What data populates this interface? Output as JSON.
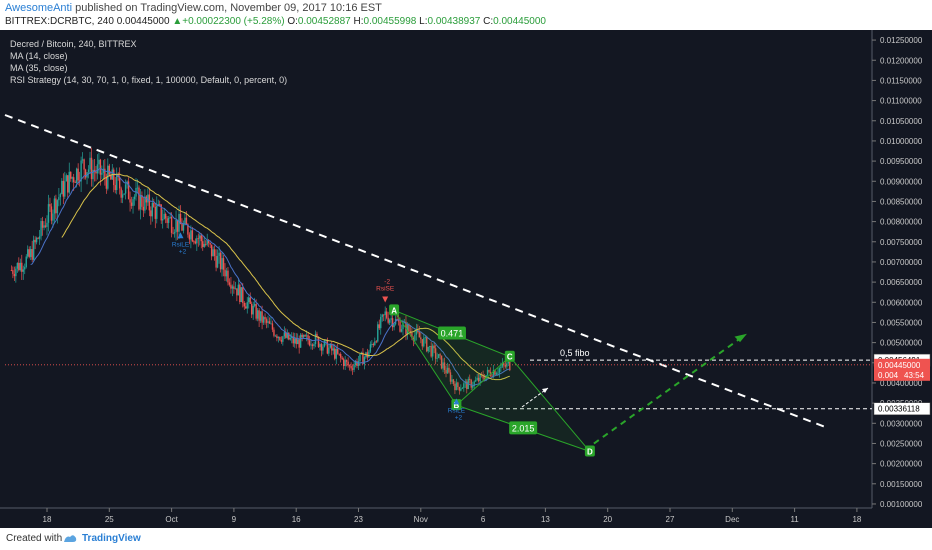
{
  "header": {
    "username": "AwesomeAnti",
    "published": "published on TradingView.com, November 09, 2017 10:16 EST",
    "symbol": "BITTREX:DCRBTC, 240",
    "last": "0.00445000",
    "change_arrow": "▲",
    "change": "+0.00022300 (+5.28%)",
    "o_label": "O:",
    "o": "0.00452887",
    "h_label": "H:",
    "h": "0.00455998",
    "l_label": "L:",
    "l": "0.00438937",
    "c_label": "C:",
    "c": "0.00445000"
  },
  "legend": {
    "title": "Decred / Bitcoin, 240, BITTREX",
    "ma14": "MA (14, close)",
    "ma35": "MA (35, close)",
    "rsi": "RSI Strategy (14, 30, 70, 1, 0, fixed, 1, 100000, Default, 0, percent, 0)"
  },
  "footer": {
    "created_with": "Created with",
    "brand": "TradingView"
  },
  "colors": {
    "background": "#131722",
    "up": "#26a69a",
    "down": "#ef5350",
    "ma14": "#4a72c8",
    "ma35": "#d8c24a",
    "harmonic": "#2aa52a",
    "trendline": "#ffffff",
    "price_line": "#ef5350"
  },
  "chart_data": {
    "type": "candlestick",
    "title": "Decred / Bitcoin, 240, BITTREX",
    "xlabel": "",
    "ylabel": "",
    "x_ticks": [
      "18",
      "25",
      "Oct",
      "9",
      "16",
      "23",
      "Nov",
      "6",
      "13",
      "20",
      "27",
      "Dec",
      "11",
      "18"
    ],
    "y_ticks": [
      "0.01250000",
      "0.01200000",
      "0.01150000",
      "0.01100000",
      "0.01050000",
      "0.01000000",
      "0.00950000",
      "0.00900000",
      "0.00850000",
      "0.00800000",
      "0.00750000",
      "0.00700000",
      "0.00650000",
      "0.00600000",
      "0.00550000",
      "0.00500000",
      "0.00450000",
      "0.00400000",
      "0.00350000",
      "0.00300000",
      "0.00250000",
      "0.00200000",
      "0.00150000",
      "0.00100000"
    ],
    "ylim": [
      0.0009,
      0.01275
    ],
    "grid": false,
    "price_series": [
      {
        "date": "Sep 14",
        "close": 0.0068
      },
      {
        "date": "Sep 16",
        "close": 0.0071
      },
      {
        "date": "Sep 18",
        "close": 0.0081
      },
      {
        "date": "Sep 20",
        "close": 0.0089
      },
      {
        "date": "Sep 22",
        "close": 0.0094
      },
      {
        "date": "Sep 24",
        "close": 0.0092
      },
      {
        "date": "Sep 26",
        "close": 0.0089
      },
      {
        "date": "Sep 28",
        "close": 0.0086
      },
      {
        "date": "Sep 30",
        "close": 0.0083
      },
      {
        "date": "Oct 2",
        "close": 0.008
      },
      {
        "date": "Oct 4",
        "close": 0.0078
      },
      {
        "date": "Oct 6",
        "close": 0.0074
      },
      {
        "date": "Oct 8",
        "close": 0.0068
      },
      {
        "date": "Oct 10",
        "close": 0.0061
      },
      {
        "date": "Oct 12",
        "close": 0.0056
      },
      {
        "date": "Oct 14",
        "close": 0.0052
      },
      {
        "date": "Oct 16",
        "close": 0.005
      },
      {
        "date": "Oct 18",
        "close": 0.0051
      },
      {
        "date": "Oct 20",
        "close": 0.0048
      },
      {
        "date": "Oct 22",
        "close": 0.0044
      },
      {
        "date": "Oct 24",
        "close": 0.0047
      },
      {
        "date": "Oct 26",
        "close": 0.0057
      },
      {
        "date": "Oct 28",
        "close": 0.0054
      },
      {
        "date": "Oct 30",
        "close": 0.0051
      },
      {
        "date": "Nov 1",
        "close": 0.0046
      },
      {
        "date": "Nov 3",
        "close": 0.0039
      },
      {
        "date": "Nov 5",
        "close": 0.004
      },
      {
        "date": "Nov 7",
        "close": 0.0043
      },
      {
        "date": "Nov 9",
        "close": 0.00445
      }
    ],
    "harmonic_pattern": {
      "points": [
        {
          "label": "A",
          "date": "Oct 27",
          "price": 0.0058
        },
        {
          "label": "B",
          "date": "Nov 3",
          "price": 0.00345
        },
        {
          "label": "C",
          "date": "Nov 9",
          "price": 0.00465
        },
        {
          "label": "D",
          "date": "Nov 18",
          "price": 0.0023
        }
      ],
      "ratios": [
        {
          "label": "0.471",
          "between": "A-C"
        },
        {
          "label": "2.015",
          "between": "B-D"
        }
      ]
    },
    "levels": [
      {
        "label": "0,5 fibo",
        "value": 0.00456491,
        "value_label": "0.00456491"
      },
      {
        "label": "",
        "value": 0.00336118,
        "value_label": "0.00336118"
      }
    ],
    "current_price": {
      "value": 0.00445,
      "label": "0.00445000",
      "countdown": "43:54",
      "partial_label": "0.004"
    },
    "strategy_signals": [
      {
        "type": "buy",
        "date": "Oct 3",
        "text": "RsiLE",
        "qty": "+2"
      },
      {
        "type": "sell",
        "date": "Oct 26",
        "text": "RsiSE",
        "qty": "-2"
      },
      {
        "type": "buy",
        "date": "Nov 3",
        "text": "RsiLE",
        "qty": "+2"
      }
    ],
    "series": [
      {
        "name": "MA (14, close)"
      },
      {
        "name": "MA (35, close)"
      }
    ]
  }
}
